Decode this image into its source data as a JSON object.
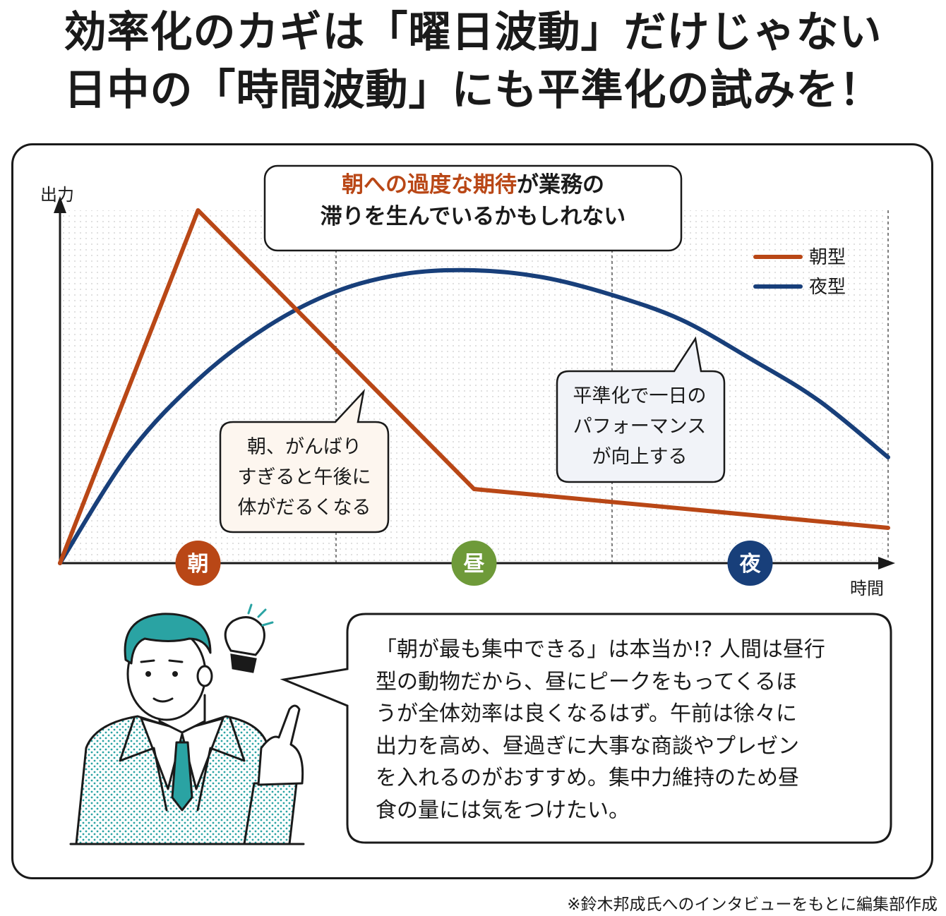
{
  "headline": {
    "line1": "効率化のカギは「曜日波動」だけじゃない",
    "line2": "日中の「時間波動」にも平準化の試みを！"
  },
  "chart_data": {
    "type": "line",
    "ylabel": "出力",
    "xlabel": "時間",
    "categories": [
      "朝",
      "昼",
      "夜"
    ],
    "category_colors": [
      "#b94716",
      "#6e9a39",
      "#183f7a"
    ],
    "series": [
      {
        "name": "朝型",
        "color": "#b94716",
        "x": [
          0,
          0.5,
          1.5,
          3.0
        ],
        "values": [
          0,
          1.0,
          0.21,
          0.1
        ]
      },
      {
        "name": "夜型",
        "color": "#183f7a",
        "x": [
          0,
          0.25,
          0.5,
          0.75,
          1.0,
          1.25,
          1.5,
          1.75,
          2.0,
          2.25,
          2.5,
          2.75,
          3.0
        ],
        "values": [
          0,
          0.31,
          0.52,
          0.67,
          0.77,
          0.82,
          0.83,
          0.81,
          0.76,
          0.69,
          0.58,
          0.46,
          0.3
        ]
      }
    ],
    "xlim": [
      0,
      3
    ],
    "ylim": [
      0,
      1
    ],
    "legend": "top-right",
    "grid": "dotted background, dashed vertical separators between 朝/昼/夜"
  },
  "callouts": {
    "headline": {
      "em": "朝への過度な期待",
      "rest": "が業務の",
      "line2": "滞りを生んでいるかもしれない"
    },
    "morning": [
      "朝、がんばり",
      "すぎると午後に",
      "体がだるくなる"
    ],
    "flatten": [
      "平準化で一日の",
      "パフォーマンス",
      "が向上する"
    ]
  },
  "speech": {
    "lines": [
      "「朝が最も集中できる」は本当か!? 人間は昼行",
      "型の動物だから、昼にピークをもってくるほ",
      "うが全体効率は良くなるはず。午前は徐々に",
      "出力を高め、昼過ぎに大事な商談やプレゼン",
      "を入れるのがおすすめ。集中力維持のため昼",
      "食の量には気をつけたい。"
    ]
  },
  "footnote": "※鈴木邦成氏へのインタビューをもとに編集部作成"
}
